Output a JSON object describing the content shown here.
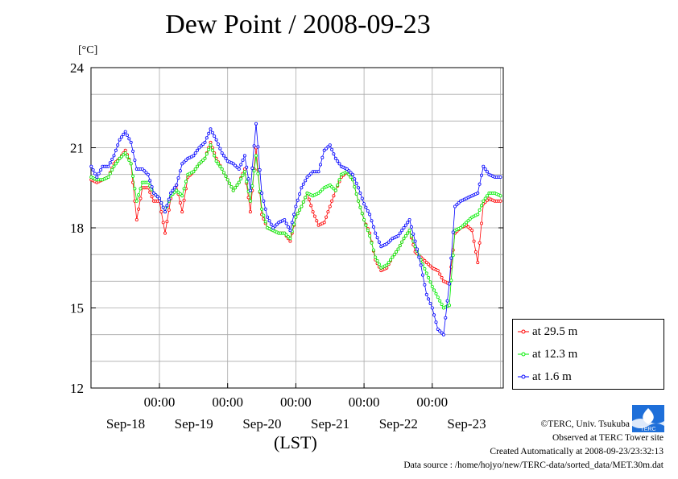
{
  "title": "Dew Point / 2008-09-23",
  "unit": "[°C]",
  "xlabel": "(LST)",
  "footer": {
    "copyright": "©TERC, Univ. Tsukuba",
    "observed": "Observed at TERC Tower site",
    "created": "Created Automatically at 2008-09-23/23:32:13",
    "source": "Data source : /home/hojyo/new/TERC-data/sorted_data/MET.30m.dat"
  },
  "logo_text": "TERC",
  "chart_data": {
    "type": "line",
    "title": "Dew Point / 2008-09-23",
    "ylabel": "[°C]",
    "xlabel": "(LST)",
    "ylim": [
      12,
      24
    ],
    "yticks": [
      12,
      15,
      18,
      21,
      24
    ],
    "xlim": [
      0,
      6
    ],
    "x_units": "days from 2008-09-17 12:00 LST",
    "xticks": [
      {
        "x": 1,
        "top": "00:00",
        "bottom": "Sep-18"
      },
      {
        "x": 2,
        "top": "00:00",
        "bottom": "Sep-19"
      },
      {
        "x": 3,
        "top": "00:00",
        "bottom": "Sep-20"
      },
      {
        "x": 4,
        "top": "00:00",
        "bottom": "Sep-21"
      },
      {
        "x": 5,
        "top": "00:00",
        "bottom": "Sep-22"
      },
      {
        "x": 6,
        "top": "",
        "bottom": "Sep-23"
      }
    ],
    "grid": true,
    "legend_position": "bottom-right outside",
    "x": [
      0.0,
      0.083,
      0.167,
      0.25,
      0.333,
      0.417,
      0.5,
      0.583,
      0.667,
      0.75,
      0.833,
      0.917,
      1.0,
      1.083,
      1.167,
      1.25,
      1.333,
      1.417,
      1.5,
      1.583,
      1.667,
      1.75,
      1.833,
      1.917,
      2.0,
      2.083,
      2.167,
      2.25,
      2.333,
      2.417,
      2.5,
      2.583,
      2.667,
      2.75,
      2.833,
      2.917,
      3.0,
      3.083,
      3.167,
      3.25,
      3.333,
      3.417,
      3.5,
      3.583,
      3.667,
      3.75,
      3.833,
      3.917,
      4.0,
      4.083,
      4.167,
      4.25,
      4.333,
      4.417,
      4.5,
      4.583,
      4.667,
      4.75,
      4.833,
      4.917,
      5.0,
      5.083,
      5.167,
      5.25,
      5.333,
      5.417,
      5.5,
      5.583,
      5.667,
      5.75,
      5.833,
      5.917,
      6.0
    ],
    "series": [
      {
        "name": "at 29.5 m",
        "color": "#ff0000",
        "values": [
          19.8,
          19.7,
          19.8,
          19.9,
          20.4,
          20.6,
          20.9,
          20.4,
          18.3,
          19.5,
          19.5,
          19.0,
          19.0,
          17.8,
          19.1,
          19.6,
          18.6,
          19.9,
          20.1,
          20.4,
          20.6,
          21.2,
          20.6,
          20.2,
          19.8,
          19.4,
          19.7,
          20.2,
          18.6,
          21.0,
          18.5,
          18.0,
          17.9,
          17.8,
          17.8,
          17.5,
          18.4,
          18.8,
          19.3,
          18.6,
          18.1,
          18.2,
          18.8,
          19.4,
          19.9,
          20.1,
          19.8,
          19.0,
          18.3,
          17.8,
          16.8,
          16.4,
          16.5,
          16.9,
          17.2,
          17.6,
          17.9,
          17.1,
          16.9,
          16.7,
          16.5,
          16.4,
          16.0,
          15.9,
          17.8,
          18.0,
          18.1,
          17.9,
          16.7,
          18.9,
          19.1,
          19.0,
          19.0
        ]
      },
      {
        "name": "at 12.3 m",
        "color": "#00ee00",
        "values": [
          19.9,
          19.8,
          19.8,
          19.9,
          20.3,
          20.6,
          20.8,
          20.4,
          19.0,
          19.7,
          19.7,
          19.3,
          19.1,
          18.6,
          19.2,
          19.4,
          19.2,
          20.0,
          20.1,
          20.4,
          20.6,
          21.1,
          20.5,
          20.2,
          19.8,
          19.4,
          19.7,
          20.1,
          19.0,
          20.7,
          18.7,
          18.0,
          17.9,
          17.8,
          17.8,
          17.6,
          18.4,
          18.8,
          19.3,
          19.2,
          19.3,
          19.5,
          19.6,
          19.4,
          20.0,
          20.1,
          19.8,
          19.0,
          18.3,
          17.7,
          16.9,
          16.5,
          16.6,
          16.9,
          17.2,
          17.6,
          17.9,
          17.3,
          16.8,
          16.3,
          15.8,
          15.4,
          15.0,
          15.1,
          17.9,
          18.0,
          18.2,
          18.4,
          18.5,
          19.0,
          19.3,
          19.3,
          19.2
        ]
      },
      {
        "name": "at 1.6 m",
        "color": "#0000ff",
        "values": [
          20.3,
          19.9,
          20.3,
          20.3,
          20.7,
          21.3,
          21.6,
          21.2,
          20.2,
          20.2,
          20.0,
          19.3,
          19.1,
          18.6,
          19.3,
          19.6,
          20.4,
          20.6,
          20.7,
          21.0,
          21.2,
          21.7,
          21.3,
          20.8,
          20.5,
          20.4,
          20.2,
          20.7,
          19.4,
          21.9,
          19.3,
          18.4,
          18.0,
          18.2,
          18.3,
          17.9,
          18.8,
          19.5,
          19.9,
          20.1,
          20.1,
          20.9,
          21.1,
          20.6,
          20.3,
          20.2,
          20.0,
          19.5,
          18.9,
          18.5,
          17.8,
          17.3,
          17.4,
          17.6,
          17.7,
          18.0,
          18.3,
          17.5,
          16.6,
          15.5,
          15.0,
          14.2,
          14.0,
          15.9,
          18.8,
          19.0,
          19.1,
          19.2,
          19.3,
          20.3,
          20.0,
          19.9,
          19.9
        ]
      }
    ]
  }
}
